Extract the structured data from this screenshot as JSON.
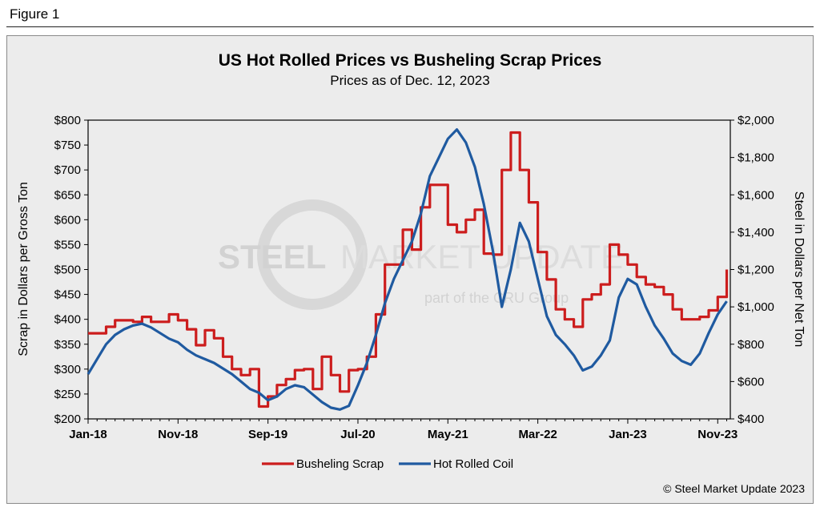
{
  "figure_label": "Figure 1",
  "credit": "© Steel Market Update 2023",
  "watermark": {
    "line1_bold": "STEEL",
    "line1_rest": "MARKET UPDATE",
    "line2": "part of the CRU Group"
  },
  "chart_data": {
    "type": "line",
    "title": "US Hot Rolled Prices vs Busheling Scrap Prices",
    "subtitle": "Prices as of Dec. 12, 2023",
    "ylabel_left": "Scrap in Dollars per Gross Ton",
    "ylabel_right": "Steel in Dollars per Net Ton",
    "ylim_left": [
      200,
      800
    ],
    "ylim_right": [
      400,
      2000
    ],
    "yticks_left": [
      "$200",
      "$250",
      "$300",
      "$350",
      "$400",
      "$450",
      "$500",
      "$550",
      "$600",
      "$650",
      "$700",
      "$750",
      "$800"
    ],
    "yticks_right": [
      "$400",
      "$600",
      "$800",
      "$1,000",
      "$1,200",
      "$1,400",
      "$1,600",
      "$1,800",
      "$2,000"
    ],
    "x_tick_labels": [
      "Jan-18",
      "Nov-18",
      "Sep-19",
      "Jul-20",
      "May-21",
      "Mar-22",
      "Jan-23",
      "Nov-23"
    ],
    "x_range_months": [
      0,
      71.4
    ],
    "legend": [
      "Busheling Scrap",
      "Hot Rolled Coil"
    ],
    "series": [
      {
        "name": "Busheling Scrap",
        "axis": "left",
        "color": "#cc1d1d",
        "step": true,
        "x": [
          0,
          1,
          2,
          3,
          4,
          5,
          6,
          7,
          8,
          9,
          10,
          11,
          12,
          13,
          14,
          15,
          16,
          17,
          18,
          19,
          20,
          21,
          22,
          23,
          24,
          25,
          26,
          27,
          28,
          29,
          30,
          31,
          32,
          33,
          34,
          35,
          36,
          37,
          38,
          39,
          40,
          41,
          42,
          43,
          44,
          45,
          46,
          47,
          48,
          49,
          50,
          51,
          52,
          53,
          54,
          55,
          56,
          57,
          58,
          59,
          60,
          61,
          62,
          63,
          64,
          65,
          66,
          67,
          68,
          69,
          70,
          71
        ],
        "values": [
          372,
          372,
          385,
          398,
          398,
          395,
          405,
          395,
          395,
          410,
          398,
          380,
          348,
          378,
          362,
          325,
          300,
          288,
          300,
          225,
          245,
          268,
          280,
          298,
          300,
          260,
          325,
          288,
          255,
          298,
          300,
          325,
          410,
          510,
          510,
          580,
          540,
          625,
          670,
          670,
          590,
          575,
          600,
          620,
          532,
          530,
          700,
          775,
          700,
          635,
          535,
          480,
          420,
          400,
          385,
          440,
          450,
          470,
          550,
          530,
          510,
          485,
          470,
          465,
          450,
          420,
          400,
          400,
          405,
          418,
          445,
          500
        ]
      },
      {
        "name": "Hot Rolled Coil",
        "axis": "right",
        "color": "#1f5aa0",
        "step": false,
        "x": [
          0,
          1,
          2,
          3,
          4,
          5,
          6,
          7,
          8,
          9,
          10,
          11,
          12,
          13,
          14,
          15,
          16,
          17,
          18,
          19,
          20,
          21,
          22,
          23,
          24,
          25,
          26,
          27,
          28,
          29,
          30,
          31,
          32,
          33,
          34,
          35,
          36,
          37,
          38,
          39,
          40,
          41,
          42,
          43,
          44,
          45,
          46,
          47,
          48,
          49,
          50,
          51,
          52,
          53,
          54,
          55,
          56,
          57,
          58,
          59,
          60,
          61,
          62,
          63,
          64,
          65,
          66,
          67,
          68,
          69,
          70,
          71
        ],
        "values": [
          640,
          720,
          800,
          850,
          880,
          900,
          910,
          890,
          860,
          830,
          810,
          770,
          740,
          720,
          700,
          670,
          640,
          600,
          560,
          540,
          500,
          520,
          560,
          580,
          570,
          530,
          490,
          460,
          450,
          470,
          580,
          700,
          850,
          1020,
          1150,
          1250,
          1350,
          1500,
          1700,
          1800,
          1900,
          1950,
          1880,
          1750,
          1550,
          1300,
          1000,
          1200,
          1450,
          1350,
          1150,
          950,
          850,
          800,
          740,
          660,
          680,
          740,
          820,
          1050,
          1150,
          1120,
          1000,
          900,
          830,
          750,
          710,
          690,
          750,
          860,
          960,
          1030
        ]
      }
    ]
  }
}
